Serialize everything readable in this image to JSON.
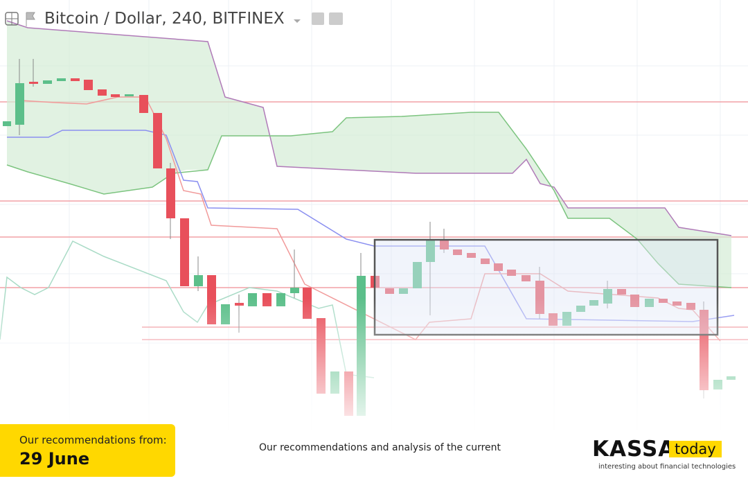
{
  "header": {
    "title": "Bitcoin / Dollar, 240, BITFINEX"
  },
  "badge": {
    "label": "Our recommendations from:",
    "date": "29 June"
  },
  "caption": "Our recommendations and analysis of the current",
  "logo": {
    "name": "KASSA",
    "tag": "today",
    "tagline": "interesting about financial technologies"
  }
}
